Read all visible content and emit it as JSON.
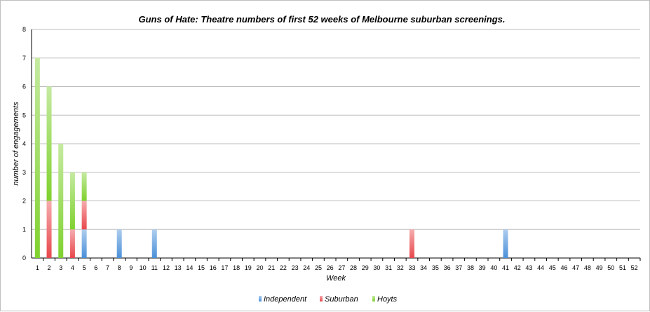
{
  "colors": {
    "independent": "#4a90d9",
    "suburban": "#e8474c",
    "hoyts": "#7fd12e",
    "grid": "#bdbdbd"
  },
  "chart_data": {
    "type": "bar",
    "stacked": true,
    "title": "Guns of Hate: Theatre numbers of first 52 weeks of Melbourne suburban screenings.",
    "xlabel": "Week",
    "ylabel": "number of engagements",
    "ylim": [
      0,
      8
    ],
    "yticks": [
      0,
      1,
      2,
      3,
      4,
      5,
      6,
      7,
      8
    ],
    "grid": true,
    "legend_position": "bottom",
    "categories": [
      "1",
      "2",
      "3",
      "4",
      "5",
      "6",
      "7",
      "8",
      "9",
      "10",
      "11",
      "12",
      "13",
      "14",
      "15",
      "16",
      "17",
      "18",
      "19",
      "20",
      "21",
      "22",
      "23",
      "24",
      "25",
      "26",
      "27",
      "28",
      "29",
      "30",
      "31",
      "32",
      "33",
      "34",
      "35",
      "36",
      "37",
      "38",
      "39",
      "40",
      "41",
      "42",
      "43",
      "44",
      "45",
      "46",
      "47",
      "48",
      "49",
      "50",
      "51",
      "52"
    ],
    "series": [
      {
        "name": "Independent",
        "color_key": "independent",
        "values": [
          0,
          0,
          0,
          0,
          1,
          0,
          0,
          1,
          0,
          0,
          1,
          0,
          0,
          0,
          0,
          0,
          0,
          0,
          0,
          0,
          0,
          0,
          0,
          0,
          0,
          0,
          0,
          0,
          0,
          0,
          0,
          0,
          0,
          0,
          0,
          0,
          0,
          0,
          0,
          0,
          1,
          0,
          0,
          0,
          0,
          0,
          0,
          0,
          0,
          0,
          0,
          0
        ]
      },
      {
        "name": "Suburban",
        "color_key": "suburban",
        "values": [
          0,
          2,
          0,
          1,
          1,
          0,
          0,
          0,
          0,
          0,
          0,
          0,
          0,
          0,
          0,
          0,
          0,
          0,
          0,
          0,
          0,
          0,
          0,
          0,
          0,
          0,
          0,
          0,
          0,
          0,
          0,
          0,
          1,
          0,
          0,
          0,
          0,
          0,
          0,
          0,
          0,
          0,
          0,
          0,
          0,
          0,
          0,
          0,
          0,
          0,
          0,
          0
        ]
      },
      {
        "name": "Hoyts",
        "color_key": "hoyts",
        "values": [
          7,
          4,
          4,
          2,
          1,
          0,
          0,
          0,
          0,
          0,
          0,
          0,
          0,
          0,
          0,
          0,
          0,
          0,
          0,
          0,
          0,
          0,
          0,
          0,
          0,
          0,
          0,
          0,
          0,
          0,
          0,
          0,
          0,
          0,
          0,
          0,
          0,
          0,
          0,
          0,
          0,
          0,
          0,
          0,
          0,
          0,
          0,
          0,
          0,
          0,
          0,
          0
        ]
      }
    ]
  }
}
